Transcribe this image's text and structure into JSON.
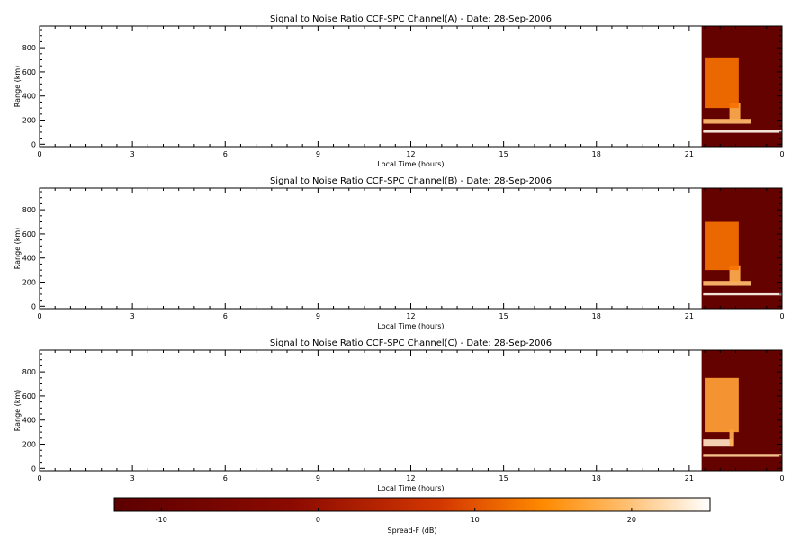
{
  "chart_data": {
    "type": "heatmap",
    "panels": [
      {
        "title": "Signal to Noise Ratio CCF-SPC Channel(A) - Date: 28-Sep-2006",
        "xlabel": "Local Time (hours)",
        "ylabel": "Range (km)",
        "xticks": [
          "0",
          "3",
          "6",
          "9",
          "12",
          "15",
          "18",
          "21",
          "0"
        ],
        "yticks": [
          "0",
          "200",
          "400",
          "600",
          "800"
        ],
        "xlim": [
          0,
          24
        ],
        "ylim": [
          -20,
          980
        ],
        "data_start_hour": 21.4,
        "background_db": -12,
        "features": [
          {
            "t0": 21.45,
            "t1": 24.0,
            "r0": 95,
            "r1": 120,
            "db": 24
          },
          {
            "t0": 21.45,
            "t1": 23.0,
            "r0": 170,
            "r1": 210,
            "db": 18
          },
          {
            "t0": 22.3,
            "t1": 22.65,
            "r0": 200,
            "r1": 340,
            "db": 16
          },
          {
            "t0": 21.5,
            "t1": 22.6,
            "r0": 300,
            "r1": 720,
            "db": 8
          }
        ]
      },
      {
        "title": "Signal to Noise Ratio CCF-SPC Channel(B) - Date: 28-Sep-2006",
        "xlabel": "Local Time (hours)",
        "ylabel": "Range (km)",
        "xticks": [
          "0",
          "3",
          "6",
          "9",
          "12",
          "15",
          "18",
          "21",
          "0"
        ],
        "yticks": [
          "0",
          "200",
          "400",
          "600",
          "800"
        ],
        "xlim": [
          0,
          24
        ],
        "ylim": [
          -20,
          980
        ],
        "data_start_hour": 21.4,
        "background_db": -12,
        "features": [
          {
            "t0": 21.45,
            "t1": 24.0,
            "r0": 90,
            "r1": 115,
            "db": 24
          },
          {
            "t0": 21.45,
            "t1": 23.0,
            "r0": 170,
            "r1": 210,
            "db": 18
          },
          {
            "t0": 22.3,
            "t1": 22.65,
            "r0": 200,
            "r1": 340,
            "db": 16
          },
          {
            "t0": 21.5,
            "t1": 22.6,
            "r0": 300,
            "r1": 700,
            "db": 8
          }
        ]
      },
      {
        "title": "Signal to Noise Ratio CCF-SPC Channel(C) - Date: 28-Sep-2006",
        "xlabel": "Local Time (hours)",
        "ylabel": "Range (km)",
        "xticks": [
          "0",
          "3",
          "6",
          "9",
          "12",
          "15",
          "18",
          "21",
          "0"
        ],
        "yticks": [
          "0",
          "200",
          "400",
          "600",
          "800"
        ],
        "xlim": [
          0,
          24
        ],
        "ylim": [
          -20,
          980
        ],
        "data_start_hour": 21.4,
        "background_db": -12,
        "features": [
          {
            "t0": 21.45,
            "t1": 24.0,
            "r0": 95,
            "r1": 120,
            "db": 20
          },
          {
            "t0": 21.45,
            "t1": 22.4,
            "r0": 180,
            "r1": 240,
            "db": 22
          },
          {
            "t0": 22.3,
            "t1": 22.45,
            "r0": 180,
            "r1": 320,
            "db": 16
          },
          {
            "t0": 21.5,
            "t1": 22.6,
            "r0": 300,
            "r1": 750,
            "db": 14
          }
        ]
      }
    ],
    "colorbar": {
      "label": "Spread-F (dB)",
      "range": [
        -13,
        25
      ],
      "ticks": [
        "-10",
        "0",
        "10",
        "20"
      ],
      "tick_values": [
        -10,
        0,
        10,
        20
      ],
      "colors": [
        "#5c0000",
        "#9a0f00",
        "#d83a00",
        "#ff8200",
        "#ffb660",
        "#ffffff"
      ]
    }
  }
}
